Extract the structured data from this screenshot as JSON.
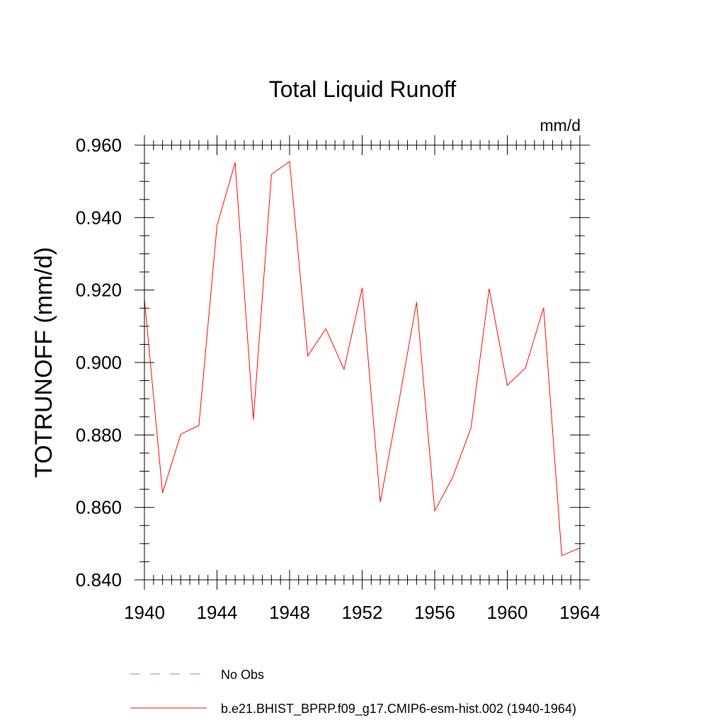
{
  "chart_data": {
    "type": "line",
    "title": "Total Liquid Runoff",
    "units_label": "mm/d",
    "ylabel": "TOTRUNOFF  (mm/d)",
    "xlabel": "",
    "xlim": [
      1940,
      1964
    ],
    "ylim": [
      0.84,
      0.96
    ],
    "x_ticks": [
      1940,
      1944,
      1948,
      1952,
      1956,
      1960,
      1964
    ],
    "x_tick_labels": [
      "1940",
      "1944",
      "1948",
      "1952",
      "1956",
      "1960",
      "1964"
    ],
    "y_ticks": [
      0.84,
      0.86,
      0.88,
      0.9,
      0.92,
      0.94,
      0.96
    ],
    "y_tick_labels": [
      "0.840",
      "0.860",
      "0.880",
      "0.900",
      "0.920",
      "0.940",
      "0.960"
    ],
    "grid": false,
    "legend_position": "bottom",
    "legend": [
      {
        "label": "No Obs",
        "color": "#8080c0",
        "style": "dashed"
      },
      {
        "label": "b.e21.BHIST_BPRP.f09_g17.CMIP6-esm-hist.002 (1940-1964)",
        "color": "#ff0000",
        "style": "solid"
      }
    ],
    "series": [
      {
        "name": "b.e21.BHIST_BPRP.f09_g17.CMIP6-esm-hist.002 (1940-1964)",
        "color": "#ff0000",
        "x": [
          1940,
          1941,
          1942,
          1943,
          1944,
          1945,
          1946,
          1947,
          1948,
          1949,
          1950,
          1951,
          1952,
          1953,
          1954,
          1955,
          1956,
          1957,
          1958,
          1959,
          1960,
          1961,
          1962,
          1963,
          1964
        ],
        "y": [
          0.9175,
          0.864,
          0.8802,
          0.8826,
          0.9378,
          0.9552,
          0.8842,
          0.9519,
          0.9555,
          0.9018,
          0.9093,
          0.8981,
          0.9206,
          0.8615,
          0.8885,
          0.9167,
          0.859,
          0.8684,
          0.882,
          0.9204,
          0.8937,
          0.8985,
          0.9151,
          0.8467,
          0.8488
        ]
      }
    ]
  }
}
